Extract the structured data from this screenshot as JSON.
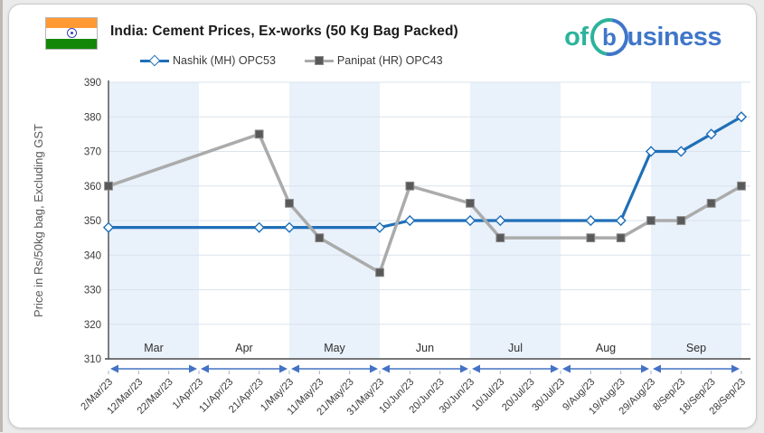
{
  "header": {
    "title": "India: Cement Prices, Ex-works (50 Kg Bag Packed)",
    "flag_name": "india-flag",
    "logo": {
      "prefix": "of",
      "b": "b",
      "suffix": "usiness"
    }
  },
  "chart_data": {
    "type": "line",
    "title": "India: Cement Prices, Ex-works (50 Kg Bag Packed)",
    "ylabel": "Price in Rs/50kg bag, Excluding GST",
    "xlabel": "",
    "ylim": [
      310,
      390
    ],
    "ytick_step": 10,
    "yticks": [
      310,
      320,
      330,
      340,
      350,
      360,
      370,
      380,
      390
    ],
    "grid": true,
    "legend_position": "top",
    "categories": [
      "2/Mar/23",
      "12/Mar/23",
      "22/Mar/23",
      "1/Apr/23",
      "11/Apr/23",
      "21/Apr/23",
      "1/May/23",
      "11/May/23",
      "21/May/23",
      "31/May/23",
      "10/Jun/23",
      "20/Jun/23",
      "30/Jun/23",
      "10/Jul/23",
      "20/Jul/23",
      "30/Jul/23",
      "9/Aug/23",
      "19/Aug/23",
      "29/Aug/23",
      "8/Sep/23",
      "18/Sep/23",
      "28/Sep/23"
    ],
    "months": [
      {
        "label": "Mar",
        "start": 0,
        "end": 3,
        "shaded": true
      },
      {
        "label": "Apr",
        "start": 3,
        "end": 6,
        "shaded": false
      },
      {
        "label": "May",
        "start": 6,
        "end": 9,
        "shaded": true
      },
      {
        "label": "Jun",
        "start": 9,
        "end": 12,
        "shaded": false
      },
      {
        "label": "Jul",
        "start": 12,
        "end": 15,
        "shaded": true
      },
      {
        "label": "Aug",
        "start": 15,
        "end": 18,
        "shaded": false
      },
      {
        "label": "Sep",
        "start": 18,
        "end": 21,
        "shaded": true
      }
    ],
    "series": [
      {
        "name": "Nashik (MH) OPC53",
        "marker": "diamond",
        "line_color": "#1f6fb8",
        "marker_fill": "#ffffff",
        "marker_stroke": "#1f6fb8",
        "points": [
          [
            0,
            348
          ],
          [
            5,
            348
          ],
          [
            6,
            348
          ],
          [
            9,
            348
          ],
          [
            10,
            350
          ],
          [
            12,
            350
          ],
          [
            13,
            350
          ],
          [
            16,
            350
          ],
          [
            17,
            350
          ],
          [
            18,
            370
          ],
          [
            19,
            370
          ],
          [
            20,
            375
          ],
          [
            21,
            380
          ]
        ]
      },
      {
        "name": "Panipat (HR) OPC43",
        "marker": "square",
        "line_color": "#ababab",
        "marker_fill": "#595959",
        "marker_stroke": "#8c8c8c",
        "points": [
          [
            0,
            360
          ],
          [
            5,
            375
          ],
          [
            6,
            355
          ],
          [
            7,
            345
          ],
          [
            9,
            335
          ],
          [
            10,
            360
          ],
          [
            12,
            355
          ],
          [
            13,
            345
          ],
          [
            16,
            345
          ],
          [
            17,
            345
          ],
          [
            18,
            350
          ],
          [
            19,
            350
          ],
          [
            20,
            355
          ],
          [
            21,
            360
          ]
        ]
      }
    ],
    "colors": {
      "band": "#e9f1fa",
      "grid": "#d9e4ee",
      "axis": "#4a4a4a",
      "tick": "#9db3cc",
      "month_arrow": "#4472c4",
      "tick_label": "#3a3a3a",
      "month_label": "#303030",
      "y_title": "#595959"
    }
  }
}
